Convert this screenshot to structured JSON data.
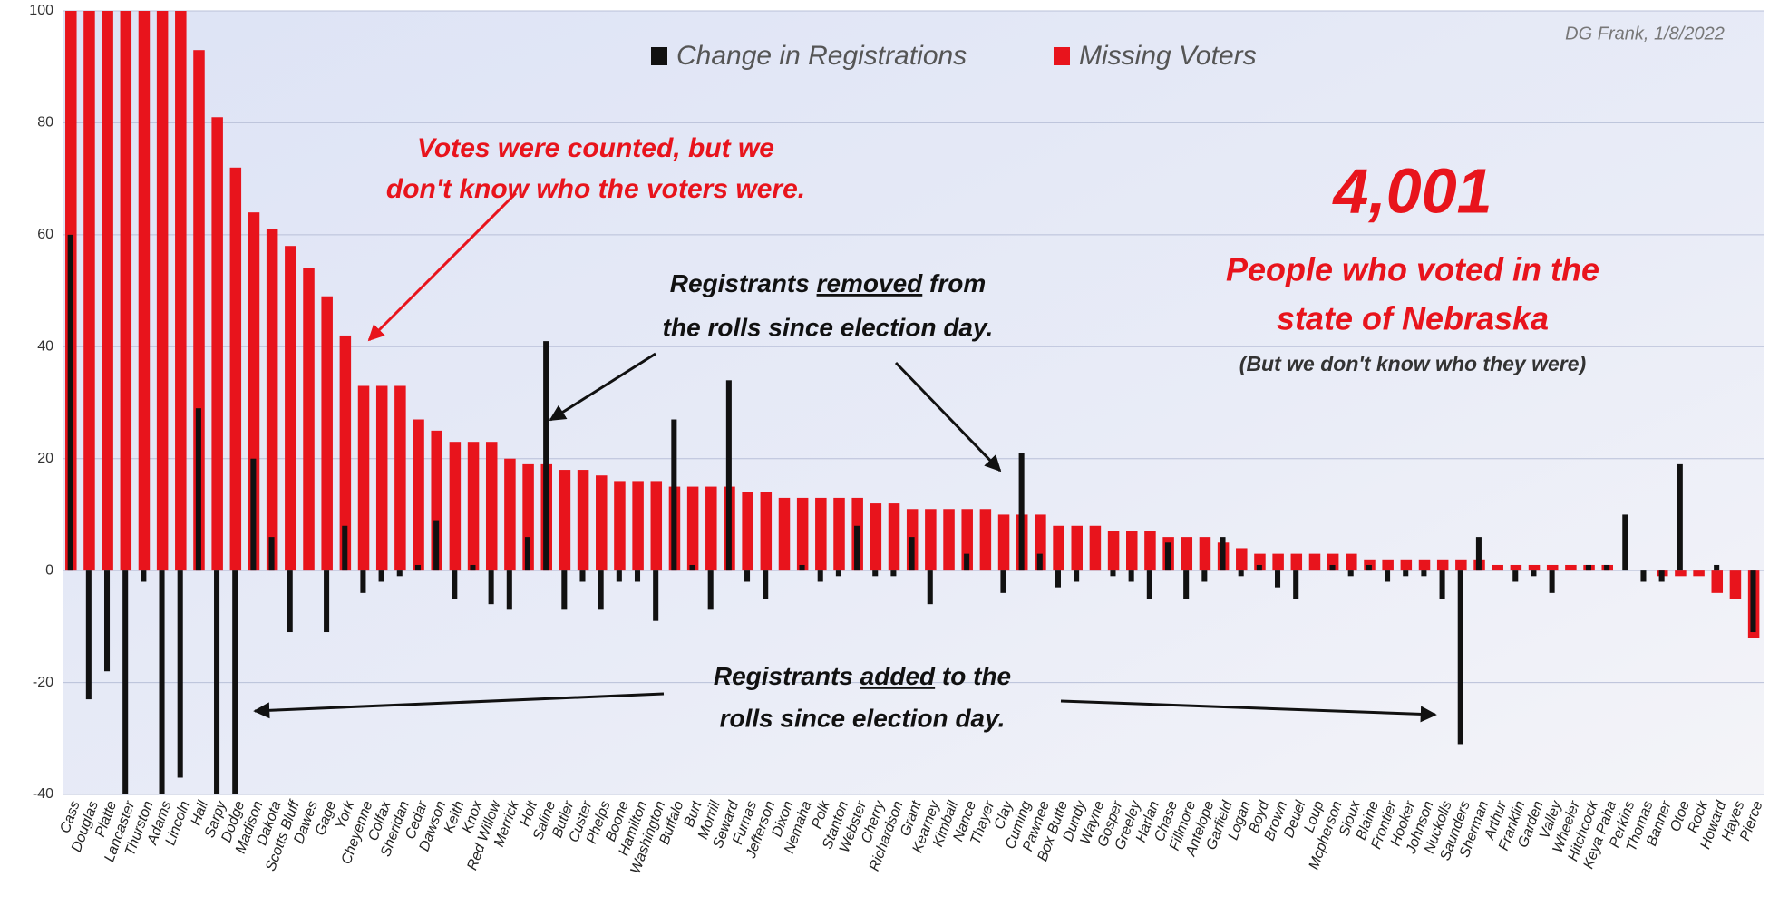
{
  "chart_data": {
    "type": "bar",
    "credit": "DG Frank, 1/8/2022",
    "categories": [
      "Cass",
      "Douglas",
      "Platte",
      "Lancaster",
      "Thurston",
      "Adams",
      "Lincoln",
      "Hall",
      "Sarpy",
      "Dodge",
      "Madison",
      "Dakota",
      "Scotts Bluff",
      "Dawes",
      "Gage",
      "York",
      "Cheyenne",
      "Colfax",
      "Sheridan",
      "Cedar",
      "Dawson",
      "Keith",
      "Knox",
      "Red Willow",
      "Merrick",
      "Holt",
      "Saline",
      "Butler",
      "Custer",
      "Phelps",
      "Boone",
      "Hamilton",
      "Washington",
      "Buffalo",
      "Burt",
      "Morrill",
      "Seward",
      "Furnas",
      "Jefferson",
      "Dixon",
      "Nemaha",
      "Polk",
      "Stanton",
      "Webster",
      "Cherry",
      "Richardson",
      "Grant",
      "Kearney",
      "Kimball",
      "Nance",
      "Thayer",
      "Clay",
      "Cuming",
      "Pawnee",
      "Box Butte",
      "Dundy",
      "Wayne",
      "Gosper",
      "Greeley",
      "Harlan",
      "Chase",
      "Fillmore",
      "Antelope",
      "Garfield",
      "Logan",
      "Boyd",
      "Brown",
      "Deuel",
      "Loup",
      "Mcpherson",
      "Sioux",
      "Blaine",
      "Frontier",
      "Hooker",
      "Johnson",
      "Nuckolls",
      "Saunders",
      "Sherman",
      "Arthur",
      "Franklin",
      "Garden",
      "Valley",
      "Wheeler",
      "Hitchcock",
      "Keya Paha",
      "Perkins",
      "Thomas",
      "Banner",
      "Otoe",
      "Rock",
      "Howard",
      "Hayes",
      "Pierce"
    ],
    "series": [
      {
        "name": "Missing Voters",
        "color": "#e8141c",
        "values": [
          100,
          100,
          100,
          100,
          100,
          100,
          100,
          93,
          81,
          72,
          64,
          61,
          58,
          54,
          49,
          42,
          33,
          33,
          33,
          27,
          25,
          23,
          23,
          23,
          20,
          19,
          19,
          18,
          18,
          17,
          16,
          16,
          16,
          15,
          15,
          15,
          15,
          14,
          14,
          13,
          13,
          13,
          13,
          13,
          12,
          12,
          11,
          11,
          11,
          11,
          11,
          10,
          10,
          10,
          8,
          8,
          8,
          7,
          7,
          7,
          6,
          6,
          6,
          5,
          4,
          3,
          3,
          3,
          3,
          3,
          3,
          2,
          2,
          2,
          2,
          2,
          2,
          2,
          1,
          1,
          1,
          1,
          1,
          1,
          1,
          0,
          0,
          -1,
          -1,
          -1,
          -4,
          -5,
          -12
        ]
      },
      {
        "name": "Change in Registrations",
        "color": "#111111",
        "values": [
          60,
          -23,
          -18,
          -40,
          -2,
          -40,
          -37,
          29,
          -40,
          -40,
          20,
          6,
          -11,
          0,
          -11,
          8,
          -4,
          -2,
          -1,
          1,
          9,
          -5,
          1,
          -6,
          -7,
          6,
          41,
          -7,
          -2,
          -7,
          -2,
          -2,
          -9,
          27,
          1,
          -7,
          34,
          -2,
          -5,
          0,
          1,
          -2,
          -1,
          8,
          -1,
          -1,
          6,
          -6,
          0,
          3,
          0,
          -4,
          21,
          3,
          -3,
          -2,
          0,
          -1,
          -2,
          -5,
          5,
          -5,
          -2,
          6,
          -1,
          1,
          -3,
          -5,
          0,
          1,
          -1,
          1,
          -2,
          -1,
          -1,
          -5,
          -31,
          6,
          0,
          -2,
          -1,
          -4,
          0,
          1,
          1,
          10,
          -2,
          -2,
          19,
          0,
          1,
          0,
          -11
        ]
      }
    ],
    "ylim": [
      -40,
      100
    ],
    "yticks": [
      -40,
      -20,
      0,
      20,
      40,
      60,
      80,
      100
    ],
    "grid": true,
    "annotations": {
      "missing_note": [
        "Votes were counted, but we",
        "don't know who the voters were."
      ],
      "removed_note": [
        "Registrants ",
        "removed",
        " from",
        "the rolls since election day."
      ],
      "added_note": [
        "Registrants ",
        "added",
        " to the",
        "rolls since election day."
      ],
      "total": "4,001",
      "total_note": [
        "People who voted in the",
        "state of Nebraska"
      ],
      "total_sub": "(But we don't know who they were)"
    }
  }
}
